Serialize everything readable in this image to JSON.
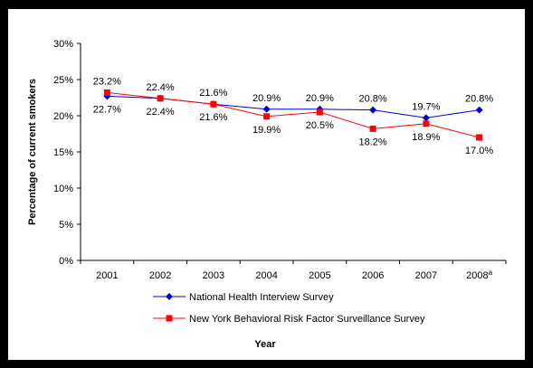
{
  "chart_data": {
    "type": "line",
    "categories": [
      "2001",
      "2002",
      "2003",
      "2004",
      "2005",
      "2006",
      "2007",
      "2008"
    ],
    "category_superscripts": [
      "",
      "",
      "",
      "",
      "",
      "",
      "",
      "a"
    ],
    "ylabel": "Percentage of current smokers",
    "xlabel": "Year",
    "ylim": [
      0,
      30
    ],
    "yticks": [
      "0%",
      "5%",
      "10%",
      "15%",
      "20%",
      "25%",
      "30%"
    ],
    "grid": false,
    "legend_placement": "bottom",
    "series": [
      {
        "name": "National Health Interview Survey",
        "color": "#0000cc",
        "marker": "diamond",
        "values": [
          22.7,
          22.4,
          21.6,
          20.9,
          20.9,
          20.8,
          19.7,
          20.8
        ],
        "labels": [
          "22.7%",
          "22.4%",
          "21.6%",
          "20.9%",
          "20.9%",
          "20.8%",
          "19.7%",
          "20.8%"
        ]
      },
      {
        "name": "New York Behavioral Risk Factor Surveillance Survey",
        "color": "#ff0000",
        "marker": "square",
        "values": [
          23.2,
          22.4,
          21.6,
          19.9,
          20.5,
          18.2,
          18.9,
          17.0
        ],
        "labels": [
          "23.2%",
          "22.4%",
          "21.6%",
          "19.9%",
          "20.5%",
          "18.2%",
          "18.9%",
          "17.0%"
        ]
      }
    ]
  }
}
